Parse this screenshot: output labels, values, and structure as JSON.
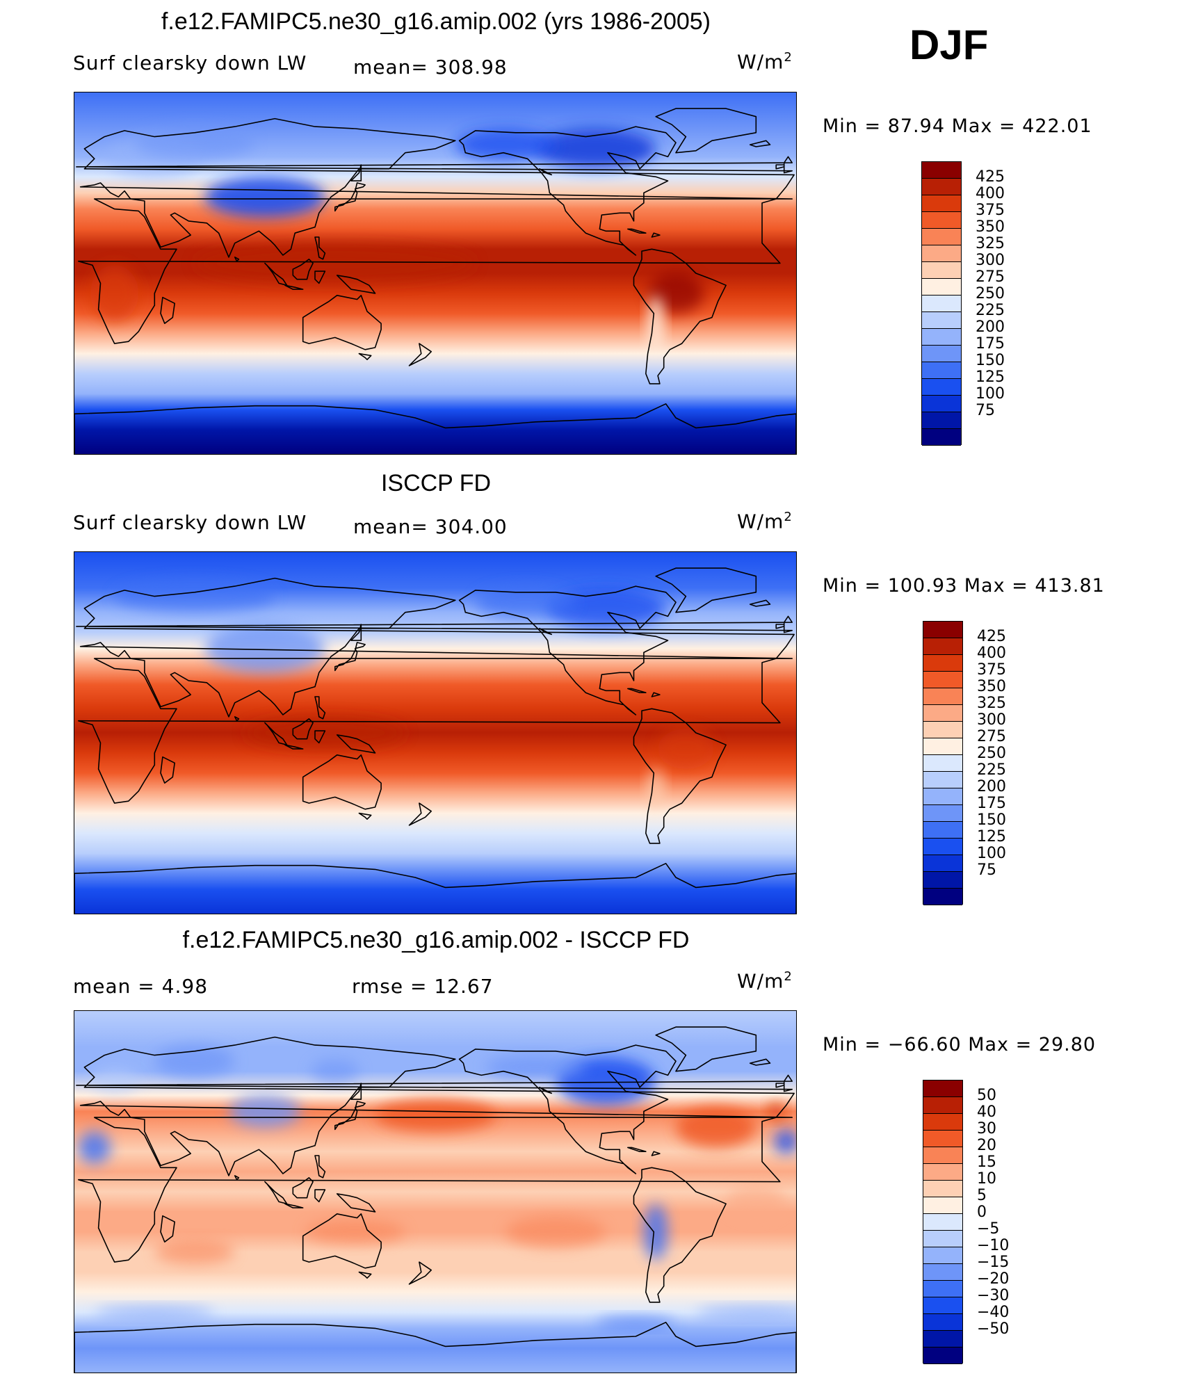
{
  "season": "DJF",
  "palette": {
    "model": [
      "#000080",
      "#0016a8",
      "#0a34d8",
      "#1a50f0",
      "#3e70f5",
      "#6e95f8",
      "#94b3fb",
      "#b8cefc",
      "#dbe8fd",
      "#fff0e2",
      "#fdd0b4",
      "#fcaa86",
      "#f98356",
      "#f05a28",
      "#da3a0c",
      "#b82005",
      "#8a0000"
    ],
    "diff": [
      "#000080",
      "#0016a8",
      "#0a34d8",
      "#1a50f0",
      "#3e70f5",
      "#6e95f8",
      "#94b3fb",
      "#b8cefc",
      "#dbe8fd",
      "#fff0e2",
      "#fdd0b4",
      "#fcaa86",
      "#f98356",
      "#f05a28",
      "#da3a0c",
      "#b82005",
      "#8a0000"
    ]
  },
  "panels": [
    {
      "id": "model",
      "title": "f.e12.FAMIPC5.ne30_g16.amip.002 (yrs 1986-2005)",
      "variable": "Surf clearsky down LW",
      "stat1": "mean= 308.98",
      "stat2": "",
      "units": "W/m",
      "units_sup": "2",
      "minmax": "Min =   87.94 Max = 422.01",
      "levels": [
        "425",
        "400",
        "375",
        "350",
        "325",
        "300",
        "275",
        "250",
        "225",
        "200",
        "175",
        "150",
        "125",
        "100",
        "75"
      ]
    },
    {
      "id": "obs",
      "title": "ISCCP FD",
      "variable": "Surf clearsky down LW",
      "stat1": "mean= 304.00",
      "stat2": "",
      "units": "W/m",
      "units_sup": "2",
      "minmax": "Min = 100.93 Max = 413.81",
      "levels": [
        "425",
        "400",
        "375",
        "350",
        "325",
        "300",
        "275",
        "250",
        "225",
        "200",
        "175",
        "150",
        "125",
        "100",
        "75"
      ]
    },
    {
      "id": "diff",
      "title": "f.e12.FAMIPC5.ne30_g16.amip.002 - ISCCP FD",
      "variable": "",
      "stat1": "mean =    4.98",
      "stat2": "rmse =   12.67",
      "units": "W/m",
      "units_sup": "2",
      "minmax": "Min = −66.60 Max =   29.80",
      "levels": [
        "50",
        "40",
        "30",
        "20",
        "15",
        "10",
        "5",
        "0",
        "−5",
        "−10",
        "−15",
        "−20",
        "−30",
        "−40",
        "−50"
      ]
    }
  ]
}
